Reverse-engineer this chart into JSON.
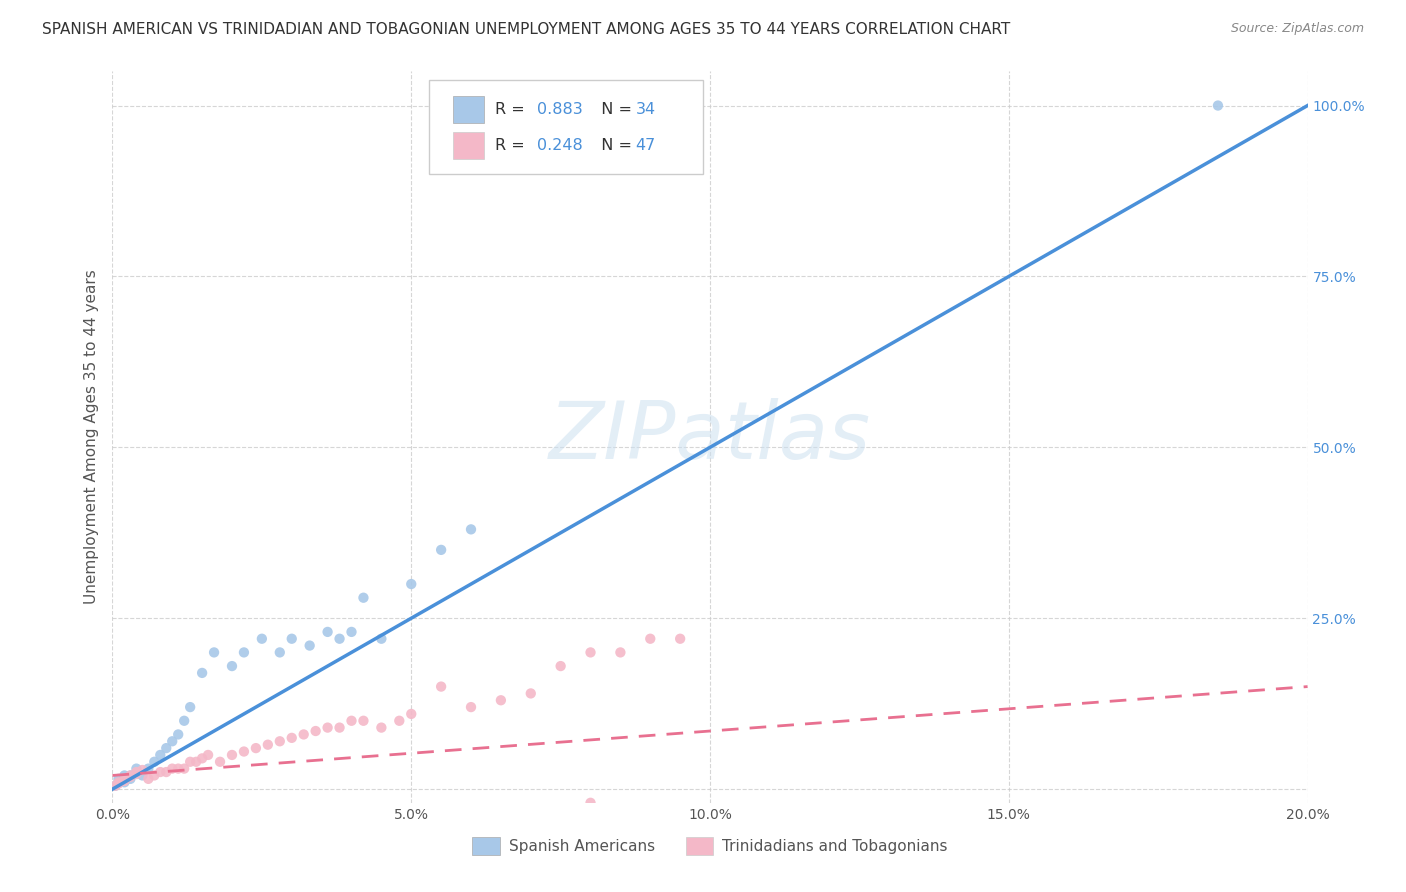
{
  "title": "SPANISH AMERICAN VS TRINIDADIAN AND TOBAGONIAN UNEMPLOYMENT AMONG AGES 35 TO 44 YEARS CORRELATION CHART",
  "source": "Source: ZipAtlas.com",
  "ylabel": "Unemployment Among Ages 35 to 44 years",
  "xlim": [
    0.0,
    0.2
  ],
  "ylim": [
    -0.02,
    1.05
  ],
  "blue_R": 0.883,
  "blue_N": 34,
  "pink_R": 0.248,
  "pink_N": 47,
  "blue_color": "#a8c8e8",
  "pink_color": "#f4b8c8",
  "blue_line_color": "#4a90d9",
  "pink_line_color": "#e87090",
  "legend_label_blue": "Spanish Americans",
  "legend_label_pink": "Trinidadians and Tobagonians",
  "watermark": "ZIPatlas",
  "background_color": "#ffffff",
  "title_fontsize": 11,
  "axis_label_fontsize": 11,
  "tick_fontsize": 10,
  "legend_fontsize": 11,
  "blue_scatter_x": [
    0.0005,
    0.001,
    0.001,
    0.002,
    0.002,
    0.003,
    0.003,
    0.004,
    0.005,
    0.006,
    0.007,
    0.008,
    0.009,
    0.01,
    0.011,
    0.012,
    0.013,
    0.015,
    0.017,
    0.02,
    0.022,
    0.025,
    0.028,
    0.03,
    0.033,
    0.036,
    0.038,
    0.04,
    0.042,
    0.045,
    0.05,
    0.055,
    0.06,
    0.185
  ],
  "blue_scatter_y": [
    0.005,
    0.01,
    0.015,
    0.01,
    0.02,
    0.015,
    0.02,
    0.03,
    0.02,
    0.03,
    0.04,
    0.05,
    0.06,
    0.07,
    0.08,
    0.1,
    0.12,
    0.17,
    0.2,
    0.18,
    0.2,
    0.22,
    0.2,
    0.22,
    0.21,
    0.23,
    0.22,
    0.23,
    0.28,
    0.22,
    0.3,
    0.35,
    0.38,
    1.0
  ],
  "pink_scatter_x": [
    0.0005,
    0.001,
    0.001,
    0.002,
    0.002,
    0.003,
    0.003,
    0.004,
    0.004,
    0.005,
    0.006,
    0.007,
    0.008,
    0.009,
    0.01,
    0.011,
    0.012,
    0.013,
    0.014,
    0.015,
    0.016,
    0.018,
    0.02,
    0.022,
    0.024,
    0.026,
    0.028,
    0.03,
    0.032,
    0.034,
    0.036,
    0.038,
    0.04,
    0.042,
    0.045,
    0.048,
    0.05,
    0.055,
    0.06,
    0.065,
    0.07,
    0.075,
    0.08,
    0.085,
    0.09,
    0.095,
    0.08
  ],
  "pink_scatter_y": [
    0.005,
    0.008,
    0.01,
    0.012,
    0.015,
    0.018,
    0.02,
    0.022,
    0.025,
    0.028,
    0.015,
    0.02,
    0.025,
    0.025,
    0.03,
    0.03,
    0.03,
    0.04,
    0.04,
    0.045,
    0.05,
    0.04,
    0.05,
    0.055,
    0.06,
    0.065,
    0.07,
    0.075,
    0.08,
    0.085,
    0.09,
    0.09,
    0.1,
    0.1,
    0.09,
    0.1,
    0.11,
    0.15,
    0.12,
    0.13,
    0.14,
    0.18,
    0.2,
    0.2,
    0.22,
    0.22,
    -0.02
  ]
}
